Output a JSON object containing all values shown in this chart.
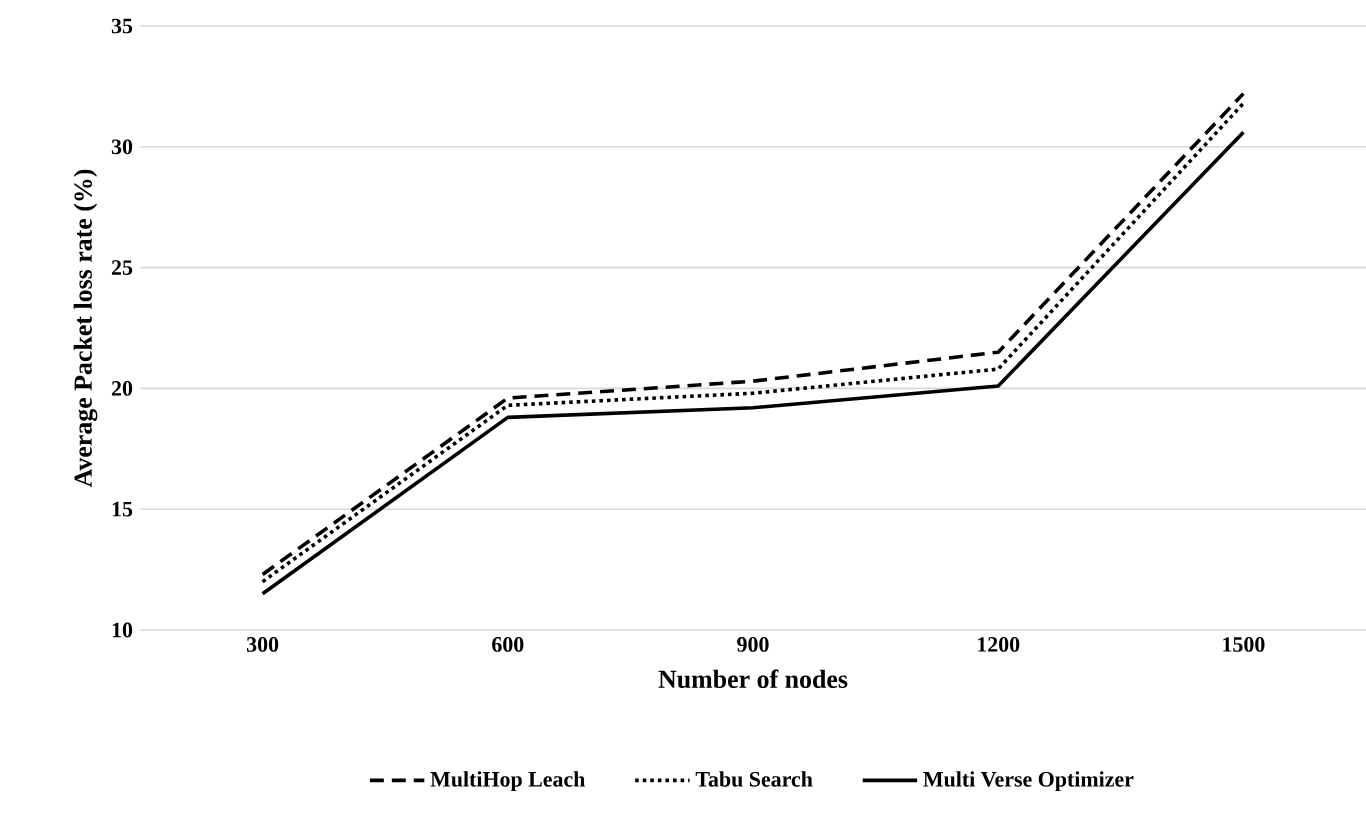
{
  "chart_data": {
    "type": "line",
    "xlabel": "Number of nodes",
    "ylabel": "Average Packet loss rate (%)",
    "categories": [
      "300",
      "600",
      "900",
      "1200",
      "1500"
    ],
    "series": [
      {
        "name": "MultiHop Leach",
        "color": "#000000",
        "line_style": "dashed",
        "values": [
          12.3,
          19.6,
          20.3,
          21.5,
          32.2
        ]
      },
      {
        "name": "Tabu Search",
        "color": "#000000",
        "line_style": "dotted",
        "values": [
          12.0,
          19.3,
          19.8,
          20.8,
          31.8
        ]
      },
      {
        "name": "Multi Verse Optimizer",
        "color": "#000000",
        "line_style": "solid",
        "values": [
          11.5,
          18.8,
          19.2,
          20.1,
          30.6
        ]
      }
    ],
    "ylim": [
      10,
      35
    ],
    "yticks": [
      10,
      15,
      20,
      25,
      30,
      35
    ],
    "grid": "y",
    "legend": "bottom",
    "marker": "none"
  }
}
